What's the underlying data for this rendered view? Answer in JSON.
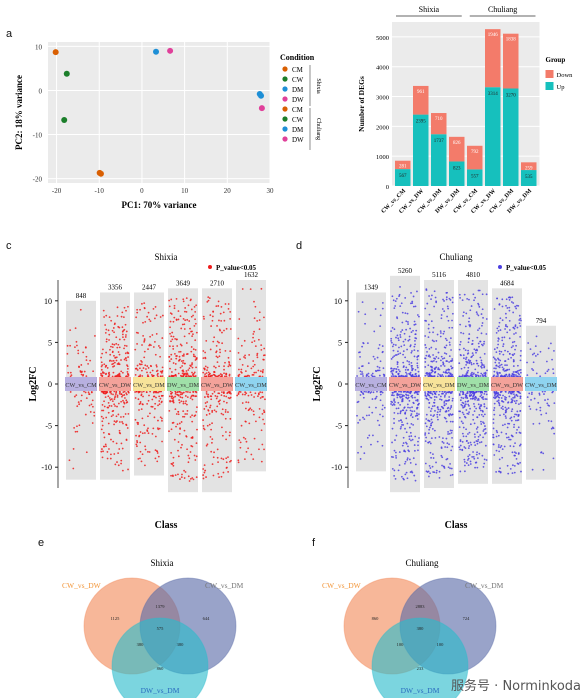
{
  "panel_labels": {
    "a": "a",
    "c": "c",
    "d": "d",
    "e": "e",
    "f": "f"
  },
  "watermark": "服务号 · Norminkoda",
  "chart_data": [
    {
      "id": "pca",
      "type": "scatter",
      "xlabel": "PC1: 70% variance",
      "ylabel": "PC2: 18% variance",
      "xlim": [
        -22,
        30
      ],
      "ylim": [
        -21,
        11
      ],
      "xticks": [
        -20,
        -10,
        0,
        10,
        20,
        30
      ],
      "yticks": [
        -20,
        -10,
        0,
        10
      ],
      "grid": true,
      "legend": {
        "title": "Condition",
        "entries": [
          {
            "label": "CM",
            "color": "#d95f02",
            "group": "Shixia"
          },
          {
            "label": "CW",
            "color": "#1b7e2a",
            "group": "Shixia"
          },
          {
            "label": "DM",
            "color": "#1e8fd6",
            "group": "Shixia"
          },
          {
            "label": "DW",
            "color": "#e0409a",
            "group": "Shixia"
          },
          {
            "label": "CM",
            "color": "#d95f02",
            "group": "Chuliang"
          },
          {
            "label": "CW",
            "color": "#1b7e2a",
            "group": "Chuliang"
          },
          {
            "label": "DM",
            "color": "#1e8fd6",
            "group": "Chuliang"
          },
          {
            "label": "DW",
            "color": "#e0409a",
            "group": "Chuliang"
          }
        ],
        "groups": [
          "Shixia",
          "Chuliang"
        ]
      },
      "points": [
        {
          "x": -20.2,
          "y": 8.7,
          "color": "#d95f02"
        },
        {
          "x": -17.6,
          "y": 3.8,
          "color": "#1b7e2a"
        },
        {
          "x": -18.2,
          "y": -6.7,
          "color": "#1b7e2a"
        },
        {
          "x": -9.9,
          "y": -18.7,
          "color": "#d95f02"
        },
        {
          "x": -9.6,
          "y": -18.9,
          "color": "#d95f02"
        },
        {
          "x": 3.3,
          "y": 8.8,
          "color": "#1e8fd6"
        },
        {
          "x": 6.6,
          "y": 9.0,
          "color": "#e0409a"
        },
        {
          "x": 27.6,
          "y": -0.8,
          "color": "#1e8fd6"
        },
        {
          "x": 27.9,
          "y": -1.2,
          "color": "#1e8fd6"
        },
        {
          "x": 28.1,
          "y": -4.0,
          "color": "#e0409a"
        }
      ]
    },
    {
      "id": "degs",
      "type": "bar",
      "ylabel": "Number of DEGs",
      "ylim": [
        0,
        5500
      ],
      "yticks": [
        0,
        1000,
        2000,
        3000,
        4000,
        5000
      ],
      "facets": [
        "Shixia",
        "Chuliang"
      ],
      "categories": [
        "CW_vs_CM",
        "CW_vs_DW",
        "CW_vs_DM",
        "DW_vs_DM",
        "CW_vs_CM",
        "CW_vs_DW",
        "CW_vs_DM",
        "DW_vs_DM"
      ],
      "series": [
        {
          "name": "Up",
          "color": "#16c0bd",
          "values": [
            567,
            2395,
            1737,
            823,
            557,
            3314,
            3270,
            535
          ]
        },
        {
          "name": "Down",
          "color": "#f37b6a",
          "values": [
            281,
            961,
            710,
            826,
            792,
            1946,
            1838,
            259
          ]
        }
      ],
      "legend": {
        "title": "Group",
        "placement": "right"
      }
    },
    {
      "id": "manhattan-shixia",
      "type": "scatter",
      "title": "Shixia",
      "xlabel": "Class",
      "ylabel": "Log2FC",
      "legend_label": "P_value<0.05",
      "point_color": "#ee1c1c",
      "yticks": [
        -10,
        -5,
        0,
        5,
        10
      ],
      "ylim": [
        -12.5,
        12.5
      ],
      "classes": [
        "CW_vs_CM",
        "CW_vs_DW",
        "CW_vs_DM",
        "DW_vs_DM",
        "CW_vs_DW",
        "CW_vs_DM"
      ],
      "class_colors": [
        "#b8b0e0",
        "#f3a29a",
        "#f7e39a",
        "#9fe0a8",
        "#f3a29a",
        "#8fd4f0"
      ],
      "counts": [
        848,
        3356,
        2447,
        3649,
        2710,
        1632
      ],
      "column_ranges": [
        [
          -10.5,
          9
        ],
        [
          -10.5,
          10
        ],
        [
          -10,
          10
        ],
        [
          -12,
          10.5
        ],
        [
          -12,
          10.5
        ],
        [
          -9.5,
          11.5
        ]
      ]
    },
    {
      "id": "manhattan-chuliang",
      "type": "scatter",
      "title": "Chuliang",
      "xlabel": "Class",
      "ylabel": "Log2FC",
      "legend_label": "P_value<0.05",
      "point_color": "#4c3fe0",
      "yticks": [
        -10,
        -5,
        0,
        5,
        10
      ],
      "ylim": [
        -12.5,
        12.5
      ],
      "classes": [
        "CW_vs_CM",
        "CW_vs_DW",
        "CW_vs_DM",
        "DW_vs_DM",
        "CW_vs_DW",
        "CW_vs_DM"
      ],
      "class_colors": [
        "#b8b0e0",
        "#f3a29a",
        "#f7e39a",
        "#9fe0a8",
        "#f3a29a",
        "#8fd4f0"
      ],
      "counts": [
        1349,
        5260,
        5116,
        4810,
        4684,
        794
      ],
      "column_ranges": [
        [
          -9.5,
          10
        ],
        [
          -12,
          12
        ],
        [
          -11.5,
          11.5
        ],
        [
          -11,
          11.5
        ],
        [
          -11,
          10.5
        ],
        [
          -10.5,
          6
        ]
      ]
    },
    {
      "id": "venn-shixia",
      "type": "venn",
      "title": "Shixia",
      "sets": [
        {
          "label": "CW_vs_DW",
          "color": "#f28a5a",
          "label_color": "#f2963a"
        },
        {
          "label": "CW_vs_DM",
          "color": "#5a6ba8",
          "label_color": "#777777"
        },
        {
          "label": "DW_vs_DM",
          "color": "#2abccc",
          "label_color": "#2a6bbf"
        }
      ],
      "regions": [
        "1125",
        "1379",
        "644",
        "380",
        "575",
        "380",
        "860"
      ]
    },
    {
      "id": "venn-chuliang",
      "type": "venn",
      "title": "Chuliang",
      "sets": [
        {
          "label": "CW_vs_DW",
          "color": "#f28a5a",
          "label_color": "#f2963a"
        },
        {
          "label": "CW_vs_DM",
          "color": "#5a6ba8",
          "label_color": "#777777"
        },
        {
          "label": "DW_vs_DM",
          "color": "#2abccc",
          "label_color": "#2a6bbf"
        }
      ],
      "regions": [
        "860",
        "2883",
        "724",
        "100",
        "380",
        "100",
        "233"
      ]
    }
  ]
}
